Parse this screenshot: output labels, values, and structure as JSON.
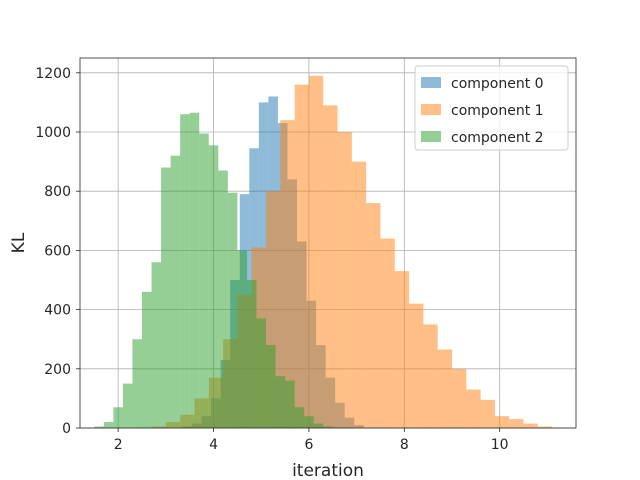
{
  "chart_data": {
    "type": "histogram",
    "xlabel": "iteration",
    "ylabel": "KL",
    "xlim": [
      1.2,
      11.6
    ],
    "ylim": [
      0,
      1250
    ],
    "xticks": [
      2,
      4,
      6,
      8,
      10
    ],
    "yticks": [
      0,
      200,
      400,
      600,
      800,
      1000,
      1200
    ],
    "grid": true,
    "legend_position": "top-right",
    "series": [
      {
        "name": "component 0",
        "color": "#1f77b4",
        "opacity": 0.5,
        "bin_edges": [
          3.35,
          3.55,
          3.75,
          3.95,
          4.15,
          4.35,
          4.55,
          4.75,
          4.95,
          5.15,
          5.35,
          5.55,
          5.75,
          5.95,
          6.15,
          6.35,
          6.55,
          6.75,
          6.95,
          7.15
        ],
        "counts": [
          5,
          15,
          40,
          100,
          230,
          500,
          790,
          945,
          1100,
          1120,
          1030,
          840,
          630,
          430,
          280,
          170,
          85,
          35,
          10
        ]
      },
      {
        "name": "component 1",
        "color": "#ff7f0e",
        "opacity": 0.5,
        "bin_edges": [
          2.7,
          3.0,
          3.3,
          3.6,
          3.9,
          4.2,
          4.5,
          4.8,
          5.1,
          5.4,
          5.7,
          6.0,
          6.3,
          6.6,
          6.9,
          7.2,
          7.5,
          7.8,
          8.1,
          8.4,
          8.7,
          9.0,
          9.3,
          9.6,
          9.9,
          10.2,
          10.5,
          10.8,
          11.1
        ],
        "counts": [
          5,
          20,
          45,
          100,
          170,
          300,
          450,
          610,
          800,
          1040,
          1160,
          1190,
          1090,
          1000,
          900,
          760,
          640,
          530,
          420,
          350,
          265,
          200,
          130,
          95,
          40,
          30,
          15,
          5
        ]
      },
      {
        "name": "component 2",
        "color": "#2ca02c",
        "opacity": 0.5,
        "bin_edges": [
          1.5,
          1.7,
          1.9,
          2.1,
          2.3,
          2.5,
          2.7,
          2.9,
          3.1,
          3.3,
          3.5,
          3.7,
          3.9,
          4.1,
          4.3,
          4.5,
          4.7,
          4.9,
          5.1,
          5.3,
          5.5,
          5.7,
          5.9,
          6.1,
          6.3,
          6.5
        ],
        "counts": [
          5,
          20,
          70,
          150,
          300,
          460,
          560,
          880,
          920,
          1060,
          1065,
          995,
          955,
          870,
          795,
          600,
          500,
          370,
          280,
          175,
          160,
          70,
          40,
          15,
          5
        ]
      }
    ]
  }
}
